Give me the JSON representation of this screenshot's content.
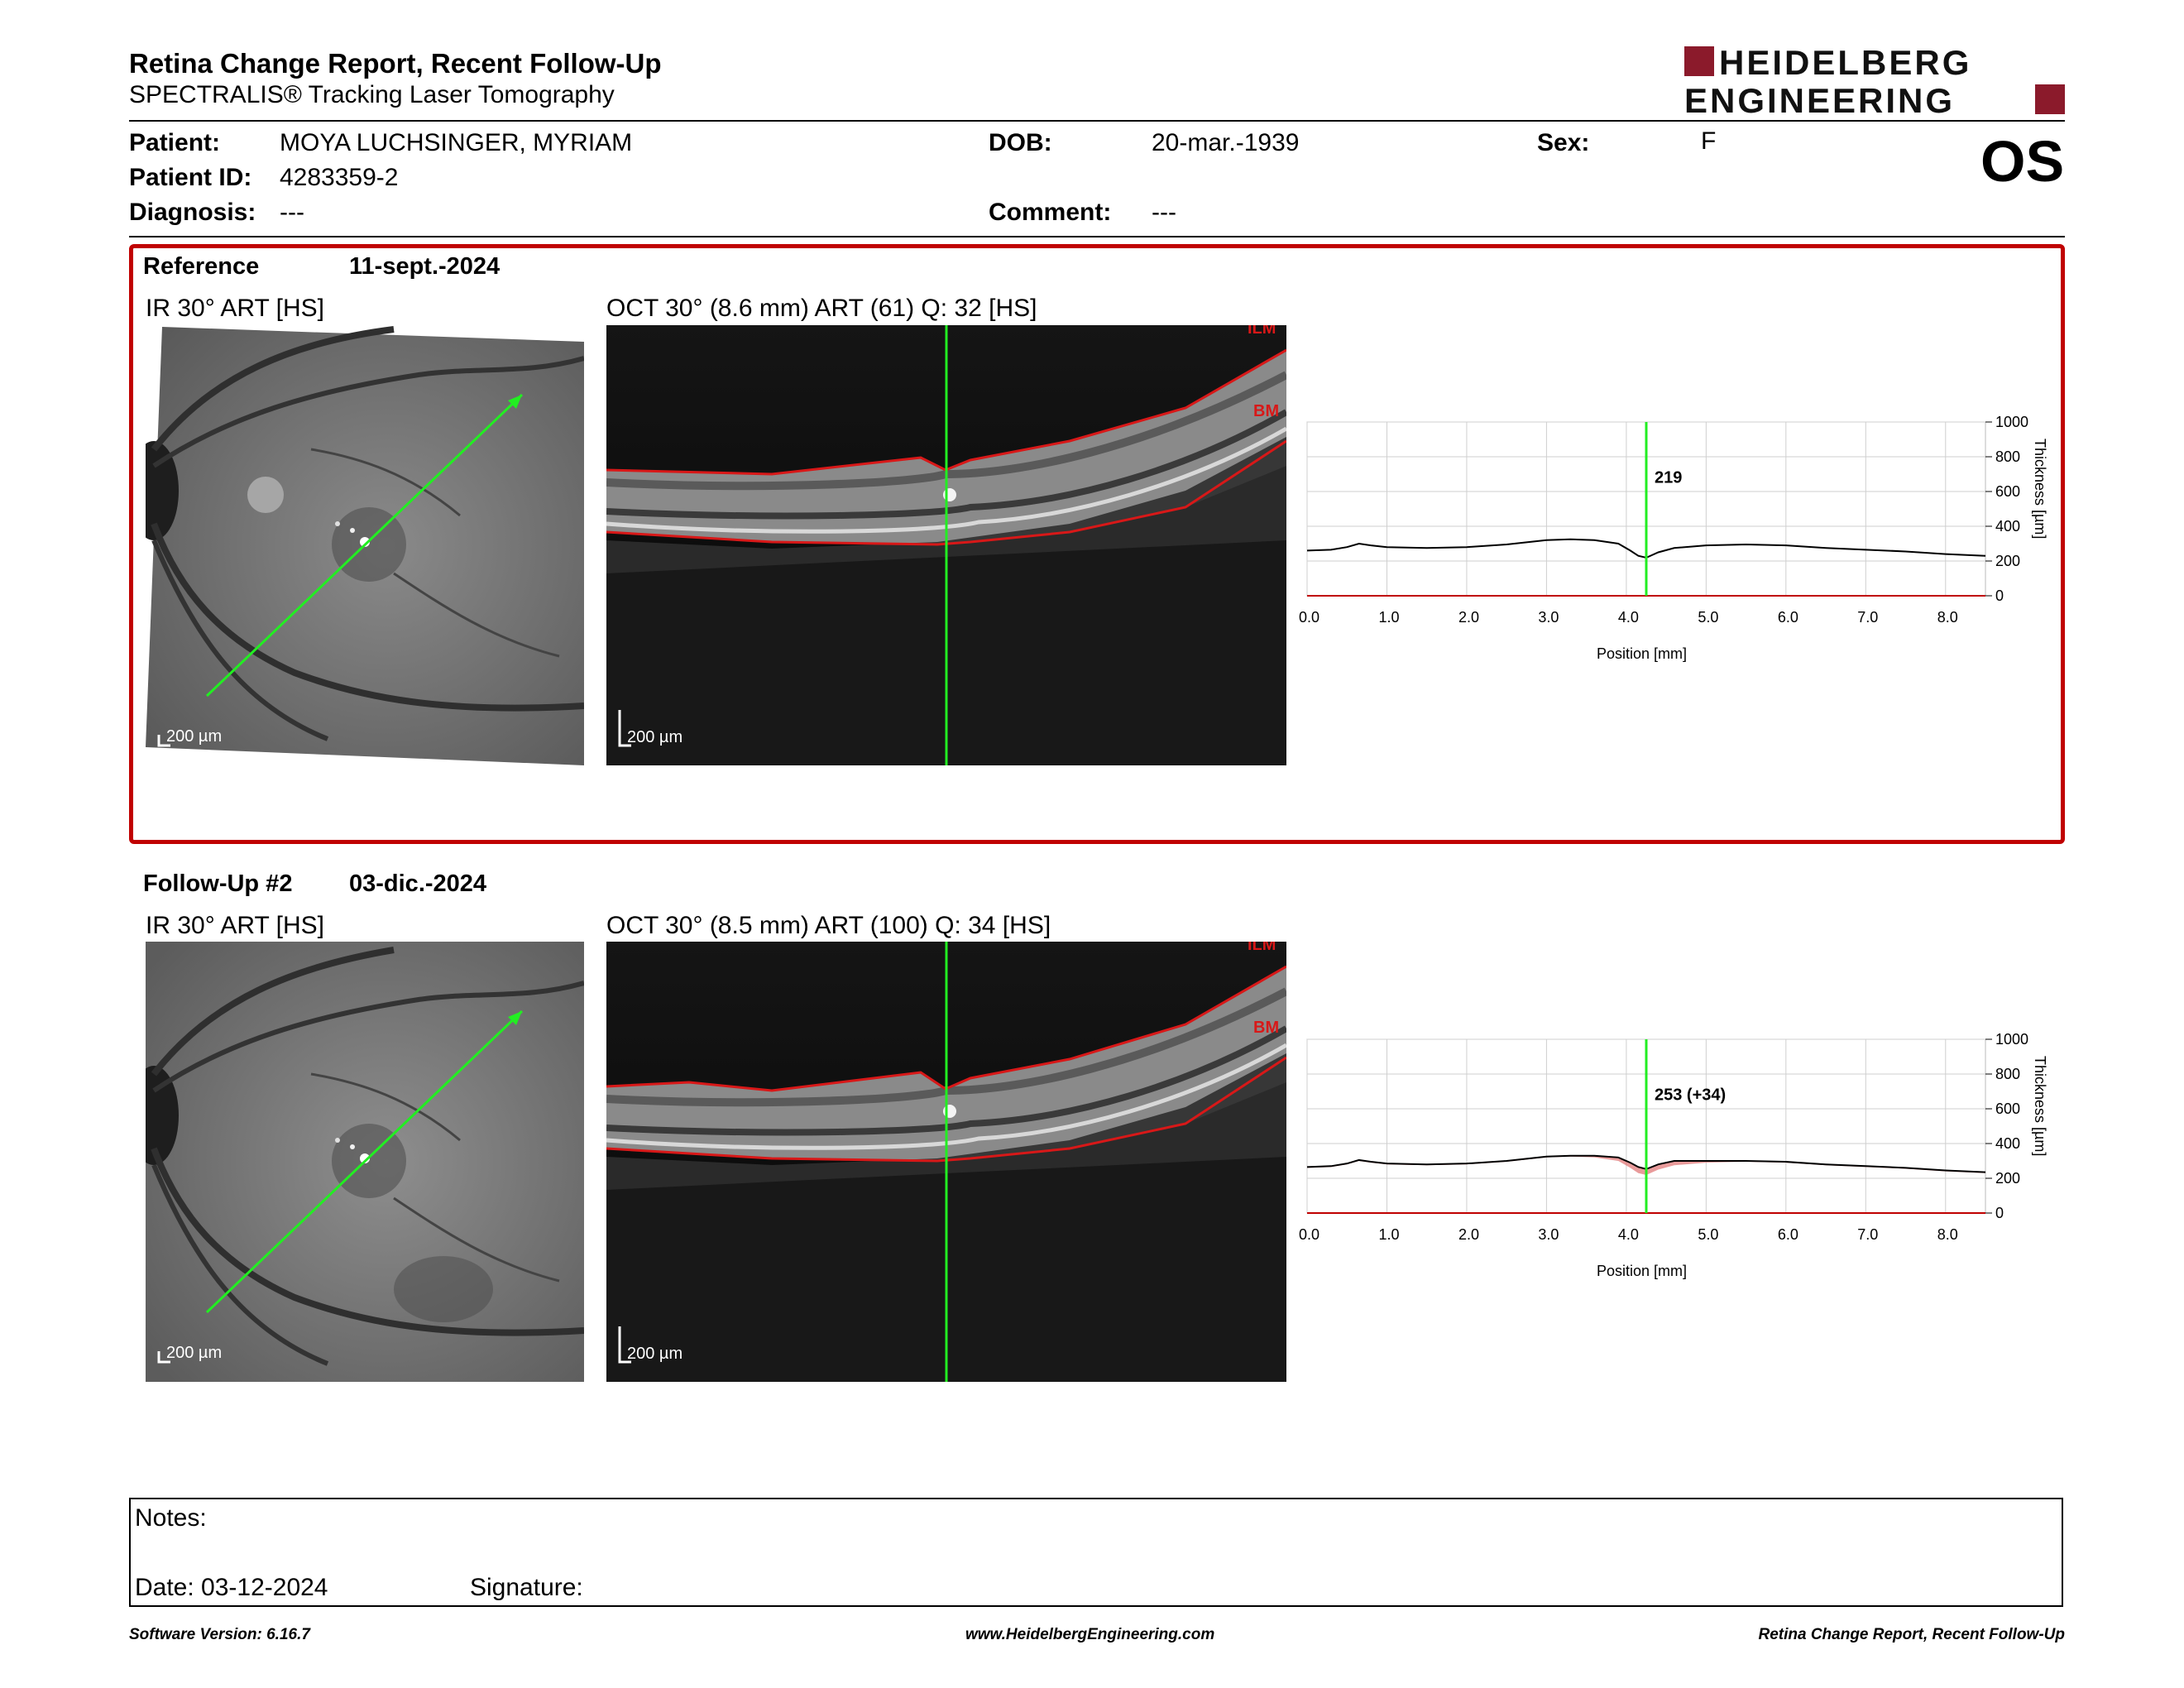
{
  "header": {
    "title": "Retina Change Report, Recent Follow-Up",
    "subtitle": "SPECTRALIS® Tracking Laser Tomography",
    "logo_line1": "HEIDELBERG",
    "logo_line2": "ENGINEERING",
    "brand_color": "#8b1a2b"
  },
  "patient": {
    "patient_label": "Patient:",
    "patient_value": "MOYA LUCHSINGER, MYRIAM",
    "id_label": "Patient ID:",
    "id_value": "4283359-2",
    "diagnosis_label": "Diagnosis:",
    "diagnosis_value": "---",
    "dob_label": "DOB:",
    "dob_value": "20-mar.-1939",
    "comment_label": "Comment:",
    "comment_value": "---",
    "sex_label": "Sex:",
    "sex_value": "F",
    "eye": "OS"
  },
  "reference": {
    "label": "Reference",
    "date": "11-sept.-2024",
    "ir_label": "IR 30° ART [HS]",
    "oct_label": "OCT 30° (8.6 mm) ART (61) Q: 32 [HS]",
    "scale": "200 µm",
    "ilm": "ILM",
    "bm": "BM",
    "thickness_value": "219"
  },
  "followup": {
    "label": "Follow-Up #2",
    "date": "03-dic.-2024",
    "ir_label": "IR 30° ART [HS]",
    "oct_label": "OCT 30° (8.5 mm) ART (100) Q: 34 [HS]",
    "scale": "200 µm",
    "ilm": "ILM",
    "bm": "BM",
    "thickness_value": "253 (+34)"
  },
  "chart_data": [
    {
      "type": "line",
      "xlabel": "Position [mm]",
      "ylabel": "Thickness [µm]",
      "xlim": [
        0,
        8.5
      ],
      "ylim": [
        0,
        1000
      ],
      "xticks": [
        "0.0",
        "1.0",
        "2.0",
        "3.0",
        "4.0",
        "5.0",
        "6.0",
        "7.0",
        "8.0"
      ],
      "yticks": [
        "0",
        "200",
        "400",
        "600",
        "800",
        "1000"
      ],
      "cursor_x": 4.25,
      "cursor_label": "219",
      "x": [
        0.0,
        0.3,
        0.5,
        0.65,
        0.8,
        1.0,
        1.5,
        2.0,
        2.5,
        3.0,
        3.3,
        3.6,
        3.9,
        4.05,
        4.15,
        4.25,
        4.4,
        4.6,
        5.0,
        5.5,
        6.0,
        6.5,
        7.0,
        7.5,
        8.0,
        8.5
      ],
      "values": [
        260,
        265,
        280,
        300,
        290,
        280,
        275,
        280,
        295,
        320,
        325,
        320,
        300,
        260,
        230,
        219,
        250,
        275,
        290,
        295,
        290,
        275,
        265,
        255,
        240,
        230
      ]
    },
    {
      "type": "line",
      "xlabel": "Position [mm]",
      "ylabel": "Thickness [µm]",
      "xlim": [
        0,
        8.5
      ],
      "ylim": [
        0,
        1000
      ],
      "xticks": [
        "0.0",
        "1.0",
        "2.0",
        "3.0",
        "4.0",
        "5.0",
        "6.0",
        "7.0",
        "8.0"
      ],
      "yticks": [
        "0",
        "200",
        "400",
        "600",
        "800",
        "1000"
      ],
      "cursor_x": 4.25,
      "cursor_label": "253 (+34)",
      "x": [
        0.0,
        0.3,
        0.5,
        0.65,
        0.8,
        1.0,
        1.5,
        2.0,
        2.5,
        3.0,
        3.3,
        3.6,
        3.9,
        4.05,
        4.15,
        4.25,
        4.4,
        4.6,
        5.0,
        5.5,
        6.0,
        6.5,
        7.0,
        7.5,
        8.0,
        8.5
      ],
      "values": [
        265,
        270,
        285,
        305,
        295,
        285,
        280,
        285,
        300,
        325,
        330,
        330,
        320,
        290,
        265,
        253,
        280,
        300,
        300,
        300,
        295,
        280,
        270,
        260,
        245,
        235
      ]
    }
  ],
  "notes": {
    "label": "Notes:",
    "date_label": "Date: 03-12-2024",
    "signature_label": "Signature:"
  },
  "footer": {
    "left": "Software Version: 6.16.7",
    "center": "www.HeidelbergEngineering.com",
    "right": "Retina Change Report, Recent Follow-Up"
  }
}
